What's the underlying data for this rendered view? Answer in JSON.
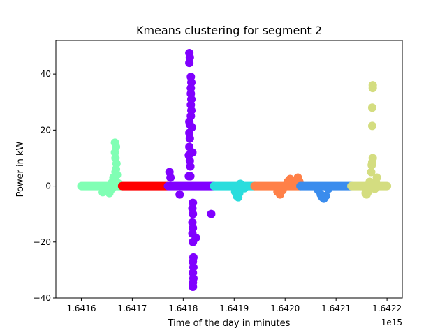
{
  "chart_data": {
    "type": "scatter",
    "title": "Kmeans clustering for segment 2",
    "xlabel": "Time of the day in minutes",
    "ylabel": "Power in kW",
    "x_offset_label": "1e15",
    "xlim": [
      1.64155,
      1.64223
    ],
    "ylim": [
      -40,
      52
    ],
    "xticks": [
      1.6416,
      1.6417,
      1.6418,
      1.6419,
      1.642,
      1.6421,
      1.6422
    ],
    "xtick_labels": [
      "1.6416",
      "1.6417",
      "1.6418",
      "1.6419",
      "1.6420",
      "1.6421",
      "1.6422"
    ],
    "yticks": [
      -40,
      -20,
      0,
      20,
      40
    ],
    "ytick_labels": [
      "−40",
      "−20",
      "0",
      "20",
      "40"
    ],
    "grid": false,
    "series": [
      {
        "color": "#80ffb4",
        "bands": [
          {
            "x0": 1.6416,
            "x1": 1.64168,
            "y": 0
          }
        ],
        "points": [
          {
            "x": 1.641645,
            "y": -1.5
          },
          {
            "x": 1.641642,
            "y": -2.2
          },
          {
            "x": 1.641655,
            "y": -2.5
          },
          {
            "x": 1.64166,
            "y": 1.2
          },
          {
            "x": 1.641663,
            "y": 3.0
          },
          {
            "x": 1.641666,
            "y": 15.5
          },
          {
            "x": 1.641668,
            "y": 14.0
          },
          {
            "x": 1.641666,
            "y": 12.0
          },
          {
            "x": 1.641667,
            "y": 10.0
          },
          {
            "x": 1.641669,
            "y": 8.0
          },
          {
            "x": 1.641668,
            "y": 6.0
          },
          {
            "x": 1.641667,
            "y": 5.0
          },
          {
            "x": 1.64167,
            "y": 4.0
          },
          {
            "x": 1.641672,
            "y": 1.0
          },
          {
            "x": 1.64166,
            "y": -1.0
          }
        ]
      },
      {
        "color": "#ff0000",
        "bands": [
          {
            "x0": 1.64168,
            "x1": 1.64177,
            "y": 0
          }
        ],
        "points": []
      },
      {
        "color": "#8000ff",
        "bands": [
          {
            "x0": 1.64177,
            "x1": 1.64186,
            "y": 0
          }
        ],
        "points": [
          {
            "x": 1.641773,
            "y": 5.0
          },
          {
            "x": 1.641775,
            "y": 3.0
          },
          {
            "x": 1.641793,
            "y": -3.0
          },
          {
            "x": 1.641855,
            "y": -10.0
          },
          {
            "x": 1.641825,
            "y": -18.5
          },
          {
            "x": 1.641812,
            "y": 47.5
          },
          {
            "x": 1.641813,
            "y": 46.0
          },
          {
            "x": 1.641812,
            "y": 44.0
          },
          {
            "x": 1.641815,
            "y": 39.0
          },
          {
            "x": 1.641816,
            "y": 37.0
          },
          {
            "x": 1.641815,
            "y": 35.0
          },
          {
            "x": 1.641815,
            "y": 33.0
          },
          {
            "x": 1.641816,
            "y": 31.0
          },
          {
            "x": 1.641815,
            "y": 29.0
          },
          {
            "x": 1.641816,
            "y": 27.0
          },
          {
            "x": 1.641815,
            "y": 25.0
          },
          {
            "x": 1.641812,
            "y": 23.0
          },
          {
            "x": 1.641813,
            "y": 22.0
          },
          {
            "x": 1.641812,
            "y": 19.0
          },
          {
            "x": 1.641813,
            "y": 17.0
          },
          {
            "x": 1.641812,
            "y": 14.0
          },
          {
            "x": 1.641811,
            "y": 11.0
          },
          {
            "x": 1.641813,
            "y": 9.0
          },
          {
            "x": 1.641814,
            "y": 7.0
          },
          {
            "x": 1.641811,
            "y": 3.5
          },
          {
            "x": 1.641814,
            "y": 3.5
          },
          {
            "x": 1.641818,
            "y": 12.0
          },
          {
            "x": 1.641817,
            "y": 21.0
          },
          {
            "x": 1.641819,
            "y": -6.0
          },
          {
            "x": 1.641818,
            "y": -8.0
          },
          {
            "x": 1.641819,
            "y": -10.0
          },
          {
            "x": 1.641818,
            "y": -13.0
          },
          {
            "x": 1.641819,
            "y": -15.0
          },
          {
            "x": 1.641818,
            "y": -17.0
          },
          {
            "x": 1.641819,
            "y": -20.0
          },
          {
            "x": 1.64182,
            "y": -25.5
          },
          {
            "x": 1.641819,
            "y": -27.0
          },
          {
            "x": 1.64182,
            "y": -29.0
          },
          {
            "x": 1.641819,
            "y": -31.0
          },
          {
            "x": 1.64182,
            "y": -33.0
          },
          {
            "x": 1.641819,
            "y": -34.5
          },
          {
            "x": 1.641819,
            "y": -36.0
          }
        ]
      },
      {
        "color": "#2adddd",
        "bands": [
          {
            "x0": 1.64186,
            "x1": 1.64194,
            "y": 0
          }
        ],
        "points": [
          {
            "x": 1.641902,
            "y": -2.0
          },
          {
            "x": 1.641905,
            "y": -3.5
          },
          {
            "x": 1.641908,
            "y": -4.0
          },
          {
            "x": 1.64191,
            "y": -2.5
          },
          {
            "x": 1.641912,
            "y": 0.8
          },
          {
            "x": 1.64192,
            "y": -0.8
          }
        ]
      },
      {
        "color": "#ff8048",
        "bands": [
          {
            "x0": 1.64194,
            "x1": 1.64203,
            "y": 0
          }
        ],
        "points": [
          {
            "x": 1.641985,
            "y": -2.0
          },
          {
            "x": 1.64199,
            "y": -3.0
          },
          {
            "x": 1.641995,
            "y": -1.5
          },
          {
            "x": 1.642005,
            "y": 1.5
          },
          {
            "x": 1.64201,
            "y": 2.5
          },
          {
            "x": 1.64202,
            "y": 2.0
          },
          {
            "x": 1.642025,
            "y": 3.0
          },
          {
            "x": 1.642028,
            "y": 1.5
          }
        ]
      },
      {
        "color": "#3a8ced",
        "bands": [
          {
            "x0": 1.64203,
            "x1": 1.64213,
            "y": 0
          }
        ],
        "points": [
          {
            "x": 1.642065,
            "y": -1.5
          },
          {
            "x": 1.64207,
            "y": -3.0
          },
          {
            "x": 1.642073,
            "y": -4.0
          },
          {
            "x": 1.642076,
            "y": -4.5
          },
          {
            "x": 1.64208,
            "y": -3.5
          },
          {
            "x": 1.642085,
            "y": -1.0
          }
        ]
      },
      {
        "color": "#d4dd80",
        "bands": [
          {
            "x0": 1.64213,
            "x1": 1.6422,
            "y": 0
          }
        ],
        "points": [
          {
            "x": 1.642158,
            "y": -2.5
          },
          {
            "x": 1.64216,
            "y": -3.0
          },
          {
            "x": 1.642163,
            "y": -2.0
          },
          {
            "x": 1.642166,
            "y": 1.5
          },
          {
            "x": 1.642169,
            "y": 5.0
          },
          {
            "x": 1.64217,
            "y": 7.5
          },
          {
            "x": 1.642171,
            "y": 8.5
          },
          {
            "x": 1.642172,
            "y": 10.0
          },
          {
            "x": 1.642171,
            "y": 21.5
          },
          {
            "x": 1.642171,
            "y": 28.0
          },
          {
            "x": 1.642172,
            "y": 35.0
          },
          {
            "x": 1.642172,
            "y": 36.0
          },
          {
            "x": 1.64218,
            "y": 3.0
          },
          {
            "x": 1.642178,
            "y": 1.5
          },
          {
            "x": 1.642176,
            "y": -1.0
          }
        ]
      }
    ]
  }
}
